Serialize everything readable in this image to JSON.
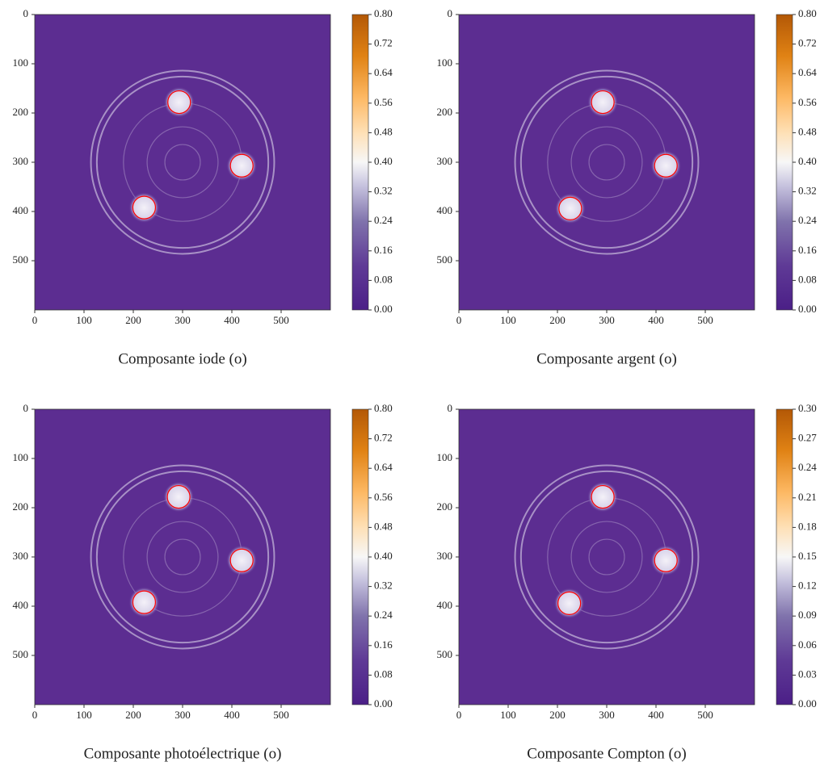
{
  "chart_data": [
    {
      "type": "heatmap",
      "title": "Composante iode (o)",
      "colormap": "PuOr_r",
      "y_inverted": true,
      "xlim": [
        0,
        600
      ],
      "ylim": [
        0,
        600
      ],
      "xticks": [
        0,
        100,
        200,
        300,
        400,
        500
      ],
      "yticks": [
        0,
        100,
        200,
        300,
        400,
        500
      ],
      "colorbar": {
        "lim": [
          0,
          0.8
        ],
        "ticks": [
          {
            "value": 0,
            "label": "0.00"
          },
          {
            "value": 0.08,
            "label": "0.08"
          },
          {
            "value": 0.16,
            "label": "0.16"
          },
          {
            "value": 0.24,
            "label": "0.24"
          },
          {
            "value": 0.32,
            "label": "0.32"
          },
          {
            "value": 0.4,
            "label": "0.40"
          },
          {
            "value": 0.48,
            "label": "0.48"
          },
          {
            "value": 0.56,
            "label": "0.56"
          },
          {
            "value": 0.64,
            "label": "0.64"
          },
          {
            "value": 0.72,
            "label": "0.72"
          },
          {
            "value": 0.8,
            "label": "0.80"
          }
        ]
      },
      "circles": {
        "color": "red",
        "x": [
          293,
          420,
          222
        ],
        "y": [
          178,
          307,
          392
        ]
      }
    },
    {
      "type": "heatmap",
      "title": "Composante argent (o)",
      "colormap": "PuOr_r",
      "y_inverted": true,
      "xlim": [
        0,
        600
      ],
      "ylim": [
        0,
        600
      ],
      "xticks": [
        0,
        100,
        200,
        300,
        400,
        500
      ],
      "yticks": [
        0,
        100,
        200,
        300,
        400,
        500
      ],
      "colorbar": {
        "lim": [
          0,
          0.8
        ],
        "ticks": [
          {
            "value": 0,
            "label": "0.00"
          },
          {
            "value": 0.08,
            "label": "0.08"
          },
          {
            "value": 0.16,
            "label": "0.16"
          },
          {
            "value": 0.24,
            "label": "0.24"
          },
          {
            "value": 0.32,
            "label": "0.32"
          },
          {
            "value": 0.4,
            "label": "0.40"
          },
          {
            "value": 0.48,
            "label": "0.48"
          },
          {
            "value": 0.56,
            "label": "0.56"
          },
          {
            "value": 0.64,
            "label": "0.64"
          },
          {
            "value": 0.72,
            "label": "0.72"
          },
          {
            "value": 0.8,
            "label": "0.80"
          }
        ]
      },
      "circles": {
        "color": "red",
        "x": [
          292,
          420,
          226
        ],
        "y": [
          178,
          307,
          394
        ]
      }
    },
    {
      "type": "heatmap",
      "title": "Composante photoélectrique (o)",
      "colormap": "PuOr_r",
      "y_inverted": true,
      "xlim": [
        0,
        600
      ],
      "ylim": [
        0,
        600
      ],
      "xticks": [
        0,
        100,
        200,
        300,
        400,
        500
      ],
      "yticks": [
        0,
        100,
        200,
        300,
        400,
        500
      ],
      "colorbar": {
        "lim": [
          0,
          0.8
        ],
        "ticks": [
          {
            "value": 0,
            "label": "0.00"
          },
          {
            "value": 0.08,
            "label": "0.08"
          },
          {
            "value": 0.16,
            "label": "0.16"
          },
          {
            "value": 0.24,
            "label": "0.24"
          },
          {
            "value": 0.32,
            "label": "0.32"
          },
          {
            "value": 0.4,
            "label": "0.40"
          },
          {
            "value": 0.48,
            "label": "0.48"
          },
          {
            "value": 0.56,
            "label": "0.56"
          },
          {
            "value": 0.64,
            "label": "0.64"
          },
          {
            "value": 0.72,
            "label": "0.72"
          },
          {
            "value": 0.8,
            "label": "0.80"
          }
        ]
      },
      "circles": {
        "color": "red",
        "x": [
          292,
          420,
          222
        ],
        "y": [
          178,
          307,
          392
        ]
      }
    },
    {
      "type": "heatmap",
      "title": "Composante Compton (o)",
      "colormap": "PuOr_r",
      "y_inverted": true,
      "xlim": [
        0,
        600
      ],
      "ylim": [
        0,
        600
      ],
      "xticks": [
        0,
        100,
        200,
        300,
        400,
        500
      ],
      "yticks": [
        0,
        100,
        200,
        300,
        400,
        500
      ],
      "colorbar": {
        "lim": [
          0,
          0.3
        ],
        "ticks": [
          {
            "value": 0,
            "label": "0.00"
          },
          {
            "value": 0.03,
            "label": "0.03"
          },
          {
            "value": 0.06,
            "label": "0.06"
          },
          {
            "value": 0.09,
            "label": "0.09"
          },
          {
            "value": 0.12,
            "label": "0.12"
          },
          {
            "value": 0.15,
            "label": "0.15"
          },
          {
            "value": 0.18,
            "label": "0.18"
          },
          {
            "value": 0.21,
            "label": "0.21"
          },
          {
            "value": 0.24,
            "label": "0.24"
          },
          {
            "value": 0.27,
            "label": "0.27"
          },
          {
            "value": 0.3,
            "label": "0.30"
          }
        ]
      },
      "circles": {
        "color": "red",
        "x": [
          292,
          420,
          224
        ],
        "y": [
          178,
          307,
          394
        ]
      }
    }
  ]
}
